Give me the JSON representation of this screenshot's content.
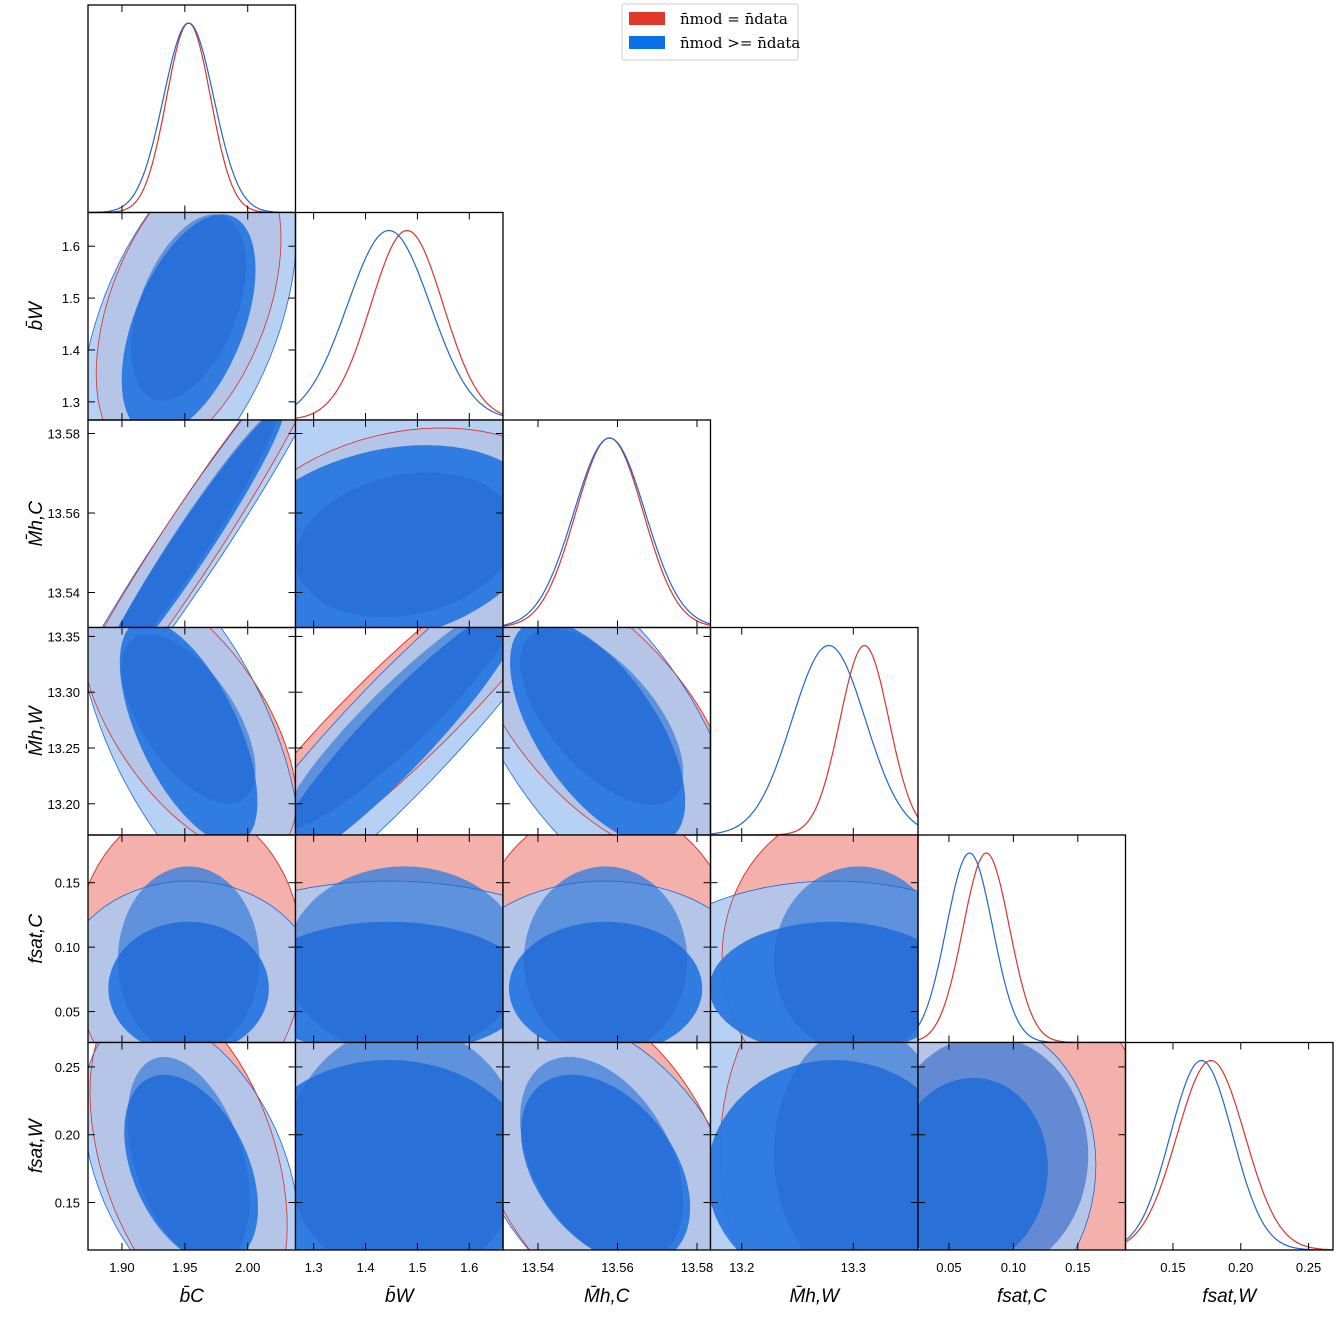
{
  "chart_data": {
    "type": "corner",
    "legend": {
      "placement": "top-center",
      "entries": [
        {
          "label": "n̄mod = n̄data",
          "color": "#e0392b"
        },
        {
          "label": "n̄mod >= n̄data",
          "color": "#0b6fe8"
        }
      ]
    },
    "series_colors": {
      "red_line": "#d9342b",
      "red_fill": "#f3aca5",
      "red_dark": "#e0392b",
      "blue_line": "#1f66d1",
      "blue_fill": "#a9c9f2",
      "blue_dark": "#2368cf",
      "blue_mid": "#2a78e0"
    },
    "params": [
      {
        "key": "bC",
        "label": "b̄C",
        "range": [
          1.873,
          2.038
        ],
        "ticks": [
          1.9,
          1.95,
          2.0
        ],
        "tick_labels": [
          "1.90",
          "1.95",
          "2.00"
        ]
      },
      {
        "key": "bW",
        "label": "b̄W",
        "range": [
          1.265,
          1.665
        ],
        "ticks": [
          1.3,
          1.4,
          1.5,
          1.6
        ],
        "tick_labels": [
          "1.3",
          "1.4",
          "1.5",
          "1.6"
        ]
      },
      {
        "key": "MhC",
        "label": "M̄h,C",
        "range": [
          13.5312,
          13.5834
        ],
        "ticks": [
          13.54,
          13.56,
          13.58
        ],
        "tick_labels": [
          "13.54",
          "13.56",
          "13.58"
        ]
      },
      {
        "key": "MhW",
        "label": "M̄h,W",
        "range": [
          13.172,
          13.358
        ],
        "ticks": [
          13.2,
          13.25,
          13.3,
          13.35
        ],
        "tick_labels": [
          "13.20",
          "13.25",
          "13.30",
          "13.35"
        ],
        "x_ticks": [
          13.2,
          13.3
        ],
        "x_tick_labels": [
          "13.2",
          "13.3"
        ]
      },
      {
        "key": "fsC",
        "label": "fsat,C",
        "range": [
          0.026,
          0.187
        ],
        "ticks": [
          0.05,
          0.1,
          0.15
        ],
        "tick_labels": [
          "0.05",
          "0.10",
          "0.15"
        ]
      },
      {
        "key": "fsW",
        "label": "fsat,W",
        "range": [
          0.115,
          0.268
        ],
        "ticks": [
          0.15,
          0.2,
          0.25
        ],
        "tick_labels": [
          "0.15",
          "0.20",
          "0.25"
        ]
      }
    ],
    "marginals": {
      "red": [
        [
          1.953,
          0.0175
        ],
        [
          1.48,
          0.07
        ],
        [
          13.558,
          0.0085
        ],
        [
          13.31,
          0.022
        ],
        [
          0.079,
          0.018
        ],
        [
          0.178,
          0.025
        ]
      ],
      "blue": [
        [
          1.953,
          0.02
        ],
        [
          1.445,
          0.08
        ],
        [
          13.558,
          0.009
        ],
        [
          13.278,
          0.033
        ],
        [
          0.066,
          0.018
        ],
        [
          0.171,
          0.023
        ]
      ]
    },
    "contours": [
      {
        "cell": [
          1,
          0
        ],
        "red": [
          1.953,
          1.479,
          0.03,
          0.118,
          0.45,
          0.02
        ],
        "blue": [
          1.953,
          1.445,
          0.035,
          0.14,
          0.5,
          0.02
        ]
      },
      {
        "cell": [
          2,
          0
        ],
        "red": [
          1.953,
          13.552,
          0.046,
          0.022,
          0.97,
          0.0
        ],
        "blue": [
          1.953,
          13.551,
          0.05,
          0.0235,
          0.97,
          0.0
        ]
      },
      {
        "cell": [
          2,
          1
        ],
        "red": [
          1.478,
          13.552,
          0.14,
          0.012,
          0.2,
          0.0
        ],
        "blue": [
          1.44,
          13.552,
          0.2,
          0.0165,
          0.25,
          0.0
        ]
      },
      {
        "cell": [
          3,
          0
        ],
        "red": [
          1.953,
          13.276,
          0.035,
          0.05,
          -0.6,
          0.0
        ],
        "blue": [
          1.953,
          13.262,
          0.036,
          0.066,
          -0.62,
          0.03
        ]
      },
      {
        "cell": [
          3,
          1
        ],
        "red": [
          1.47,
          13.281,
          0.15,
          0.068,
          0.93,
          0.0
        ],
        "blue": [
          1.46,
          13.26,
          0.16,
          0.078,
          0.93,
          0.0
        ]
      },
      {
        "cell": [
          3,
          2
        ],
        "red": [
          13.556,
          13.278,
          0.0135,
          0.052,
          -0.62,
          0.0
        ],
        "blue": [
          13.555,
          13.262,
          0.0145,
          0.066,
          -0.62,
          0.03
        ]
      },
      {
        "cell": [
          4,
          0
        ],
        "red": [
          1.953,
          0.086,
          0.037,
          0.048,
          0.0,
          0.05
        ],
        "blue": [
          1.953,
          0.068,
          0.042,
          0.034,
          0.0,
          0.0
        ]
      },
      {
        "cell": [
          4,
          1
        ],
        "red": [
          1.475,
          0.086,
          0.15,
          0.048,
          0.0,
          0.05
        ],
        "blue": [
          1.445,
          0.068,
          0.18,
          0.034,
          0.0,
          0.0
        ]
      },
      {
        "cell": [
          4,
          2
        ],
        "red": [
          13.557,
          0.086,
          0.0135,
          0.048,
          0.0,
          0.05
        ],
        "blue": [
          13.557,
          0.068,
          0.016,
          0.034,
          0.0,
          0.0
        ]
      },
      {
        "cell": [
          4,
          3
        ],
        "red": [
          13.305,
          0.086,
          0.05,
          0.048,
          0.0,
          0.05
        ],
        "blue": [
          13.282,
          0.068,
          0.073,
          0.034,
          0.0,
          0.0
        ]
      },
      {
        "cell": [
          5,
          0
        ],
        "red": [
          1.953,
          0.18,
          0.032,
          0.05,
          -0.4,
          0.02
        ],
        "blue": [
          1.955,
          0.173,
          0.035,
          0.046,
          -0.4,
          0.02
        ]
      },
      {
        "cell": [
          5,
          1
        ],
        "red": [
          1.475,
          0.183,
          0.15,
          0.062,
          0.0,
          0.03
        ],
        "blue": [
          1.445,
          0.17,
          0.185,
          0.056,
          0.0,
          0.0
        ]
      },
      {
        "cell": [
          5,
          2
        ],
        "red": [
          13.556,
          0.18,
          0.0135,
          0.05,
          -0.4,
          0.02
        ],
        "blue": [
          13.557,
          0.173,
          0.014,
          0.046,
          -0.4,
          0.02
        ]
      },
      {
        "cell": [
          5,
          3
        ],
        "red": [
          13.308,
          0.183,
          0.052,
          0.062,
          0.0,
          0.03
        ],
        "blue": [
          13.283,
          0.17,
          0.075,
          0.056,
          0.0,
          0.0
        ]
      },
      {
        "cell": [
          5,
          4
        ],
        "red": [
          0.079,
          0.182,
          0.052,
          0.058,
          0.0,
          0.03
        ],
        "blue": [
          0.066,
          0.172,
          0.04,
          0.046,
          0.05,
          0.0
        ]
      }
    ]
  }
}
